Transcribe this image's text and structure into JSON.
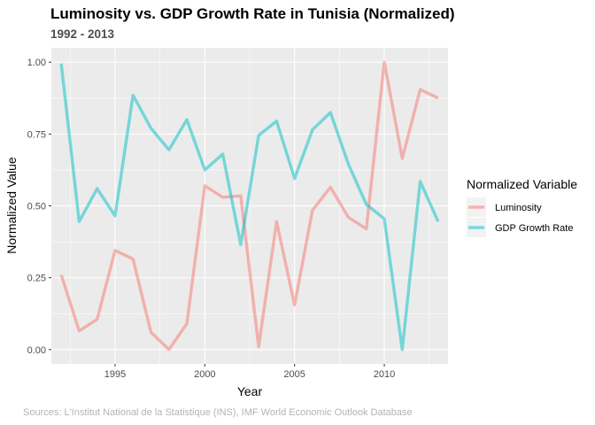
{
  "title": "Luminosity vs. GDP Growth Rate in Tunisia (Normalized)",
  "subtitle": "1992 - 2013",
  "caption": "Sources: L'Institut National de la Statistique (INS), IMF World Economic Outlook Database",
  "chart_data": {
    "type": "line",
    "title": "Luminosity vs. GDP Growth Rate in Tunisia (Normalized)",
    "subtitle": "1992 - 2013",
    "xlabel": "Year",
    "ylabel": "Normalized Value",
    "xlim": [
      1991.45,
      2013.55
    ],
    "ylim": [
      -0.05,
      1.05
    ],
    "x_ticks": [
      1995,
      2000,
      2005,
      2010
    ],
    "y_ticks": [
      0.0,
      0.25,
      0.5,
      0.75,
      1.0
    ],
    "y_tick_labels": [
      "0.00",
      "0.25",
      "0.50",
      "0.75",
      "1.00"
    ],
    "grid": true,
    "legend": {
      "title": "Normalized Variable",
      "position": "right"
    },
    "x": [
      1992,
      1993,
      1994,
      1995,
      1996,
      1997,
      1998,
      1999,
      2000,
      2001,
      2002,
      2003,
      2004,
      2005,
      2006,
      2007,
      2008,
      2009,
      2010,
      2011,
      2012,
      2013
    ],
    "series": [
      {
        "name": "Luminosity",
        "color": "#f8766d",
        "values": [
          0.26,
          0.065,
          0.105,
          0.345,
          0.315,
          0.06,
          0.0,
          0.09,
          0.57,
          0.53,
          0.535,
          0.01,
          0.445,
          0.155,
          0.485,
          0.565,
          0.46,
          0.42,
          1.0,
          0.665,
          0.905,
          0.875
        ]
      },
      {
        "name": "GDP Growth Rate",
        "color": "#00bfc4",
        "values": [
          0.995,
          0.445,
          0.56,
          0.465,
          0.885,
          0.77,
          0.695,
          0.8,
          0.625,
          0.68,
          0.365,
          0.745,
          0.795,
          0.595,
          0.765,
          0.825,
          0.645,
          0.505,
          0.455,
          0.0,
          0.585,
          0.445
        ]
      }
    ]
  }
}
